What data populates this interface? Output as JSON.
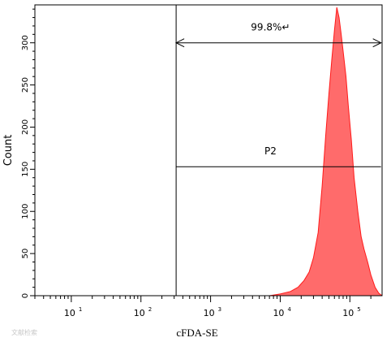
{
  "chart_data": {
    "type": "area",
    "title": "",
    "xlabel": "cFDA-SE",
    "ylabel": "Count",
    "x_scale": "log",
    "xlim": [
      3,
      290000
    ],
    "ylim": [
      0,
      345
    ],
    "x_ticks": [
      {
        "value": 10,
        "base": "10",
        "exp": "1"
      },
      {
        "value": 100,
        "base": "10",
        "exp": "2"
      },
      {
        "value": 1000,
        "base": "10",
        "exp": "3"
      },
      {
        "value": 10000,
        "base": "10",
        "exp": "4"
      },
      {
        "value": 100000,
        "base": "10",
        "exp": "5"
      }
    ],
    "y_ticks": [
      "0",
      "50",
      "100",
      "150",
      "200",
      "250",
      "300"
    ],
    "y_tick_values": [
      0,
      50,
      100,
      150,
      200,
      250,
      300
    ],
    "gate_boundary_x": 320,
    "gates": [
      {
        "name": "99.8%↵",
        "y": 300,
        "x_from": 320,
        "x_to": 280000,
        "type": "arrow"
      },
      {
        "name": "P2",
        "y": 153,
        "x_from": 320,
        "x_to": 280000,
        "type": "line"
      }
    ],
    "series": [
      {
        "color": "#ff6b6b",
        "edge_color": "#ff1a1a",
        "x": [
          7000,
          10000,
          14000,
          18000,
          22000,
          26000,
          30000,
          35000,
          40000,
          45000,
          50000,
          55000,
          60000,
          65000,
          70000,
          75000,
          80000,
          88000,
          95000,
          105000,
          115000,
          130000,
          145000,
          160000,
          180000,
          200000,
          230000,
          260000,
          290000
        ],
        "y": [
          0,
          2,
          5,
          10,
          18,
          28,
          45,
          75,
          130,
          190,
          240,
          280,
          315,
          342,
          330,
          310,
          290,
          260,
          225,
          185,
          140,
          100,
          70,
          55,
          40,
          25,
          10,
          3,
          0
        ]
      }
    ]
  },
  "watermark": "文献检索"
}
